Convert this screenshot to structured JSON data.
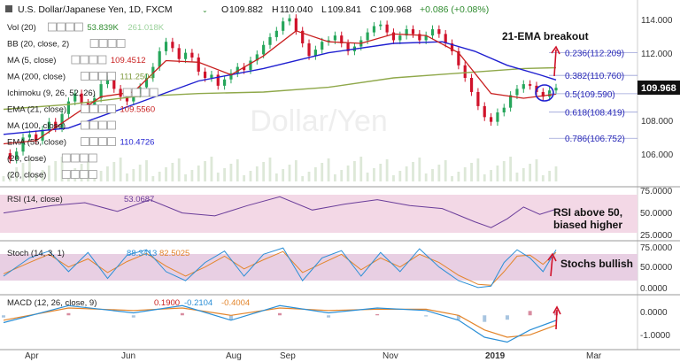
{
  "header": {
    "title": "U.S. Dollar/Japanese Yen, 1D, FXCM",
    "ohlc": {
      "o_label": "O",
      "o": "109.882",
      "h_label": "H",
      "h": "110.040",
      "l_label": "L",
      "l": "109.841",
      "c_label": "C",
      "c": "109.968",
      "change": "+0.086 (+0.08%)"
    }
  },
  "indicators": [
    {
      "label": "Vol (20)",
      "value": "53.839K",
      "value2": "261.018K",
      "color": "#2e8b2e",
      "color2": "#9ad19a"
    },
    {
      "label": "BB (20, close, 2)",
      "value": "",
      "value2": "",
      "color": "#333333",
      "color2": ""
    },
    {
      "label": "MA (5, close)",
      "value": "109.4512",
      "value2": "",
      "color": "#c81e1e",
      "color2": ""
    },
    {
      "label": "MA (200, close)",
      "value": "111.2504",
      "value2": "",
      "color": "#7e9a3e",
      "color2": ""
    },
    {
      "label": "Ichimoku (9, 26, 52, 26)",
      "value": "",
      "value2": "",
      "color": "#333333",
      "color2": ""
    },
    {
      "label": "EMA (21, close)",
      "value": "109.5560",
      "value2": "",
      "color": "#c81e1e",
      "color2": ""
    },
    {
      "label": "MA (100, close)",
      "value": "",
      "value2": "",
      "color": "#333333",
      "color2": ""
    },
    {
      "label": "EMA (55, close)",
      "value": "110.4726",
      "value2": "",
      "color": "#1f1fd0",
      "color2": ""
    },
    {
      "label": "(20, close)",
      "value": "",
      "value2": "",
      "color": "#333333",
      "color2": ""
    },
    {
      "label": "(20, close)",
      "value": "",
      "value2": "",
      "color": "#333333",
      "color2": ""
    }
  ],
  "icons": {
    "dropdown": "chevron-down",
    "eye": "eye",
    "settings": "gear",
    "close": "close",
    "more": "more"
  },
  "price_axis": {
    "ticks": [
      "114.000",
      "112.000",
      "110.000",
      "108.000",
      "106.000"
    ],
    "last_price": "109.968",
    "last_price_color": "#000000"
  },
  "fib_levels": [
    {
      "label": "0.236(112.209)"
    },
    {
      "label": "0.382(110.760)"
    },
    {
      "label": "0.5(109.590)"
    },
    {
      "label": "0.618(108.419)"
    },
    {
      "label": "0.786(106.752)"
    }
  ],
  "annotations": {
    "ema_breakout": "21-EMA breakout",
    "rsi_line1": "RSI above 50,",
    "rsi_line2": "biased higher",
    "stochs": "Stochs bullish"
  },
  "rsi": {
    "label": "RSI (14, close)",
    "value": "53.0687",
    "ticks": [
      "75.0000",
      "50.0000",
      "25.0000"
    ],
    "color": "#6a3d9a"
  },
  "stoch": {
    "label": "Stoch (14, 3, 1)",
    "k": "88.3413",
    "d": "82.5025",
    "ticks": [
      "75.0000",
      "50.0000",
      "0.0000"
    ],
    "k_color": "#2b8fd6",
    "d_color": "#e3852b"
  },
  "macd": {
    "label": "MACD (12, 26, close, 9)",
    "hist": "0.1900",
    "macd": "-0.2104",
    "signal": "-0.4004",
    "ticks": [
      "0.0000",
      "-1.0000"
    ],
    "hist_color": "#c81e1e",
    "macd_color": "#2b8fd6",
    "signal_color": "#e3852b"
  },
  "time_axis": {
    "labels": [
      "Apr",
      "Jun",
      "Aug",
      "Sep",
      "Nov",
      "2019",
      "Mar"
    ]
  },
  "watermark": "Dollar/Yen",
  "chart_data": {
    "type": "line",
    "title": "U.S. Dollar/Japanese Yen, 1D, FXCM",
    "x_labels": [
      "Apr",
      "Jun",
      "Aug",
      "Sep",
      "Nov",
      "2019",
      "Mar"
    ],
    "price": {
      "ylim": [
        104,
        115
      ],
      "close_series": [
        [
          0,
          105.8
        ],
        [
          2,
          105.4
        ],
        [
          4,
          105.9
        ],
        [
          6,
          106.8
        ],
        [
          8,
          107.0
        ],
        [
          10,
          106.6
        ],
        [
          12,
          107.3
        ],
        [
          14,
          107.8
        ],
        [
          16,
          107.4
        ],
        [
          18,
          108.3
        ],
        [
          20,
          109.1
        ],
        [
          22,
          109.6
        ],
        [
          24,
          109.0
        ],
        [
          26,
          108.6
        ],
        [
          28,
          109.3
        ],
        [
          30,
          110.2
        ],
        [
          32,
          110.5
        ],
        [
          34,
          109.9
        ],
        [
          36,
          109.4
        ],
        [
          38,
          109.1
        ],
        [
          40,
          109.6
        ],
        [
          42,
          110.0
        ],
        [
          44,
          110.6
        ],
        [
          46,
          111.3
        ],
        [
          48,
          112.3
        ],
        [
          50,
          112.9
        ],
        [
          52,
          112.5
        ],
        [
          54,
          111.8
        ],
        [
          56,
          112.2
        ],
        [
          58,
          111.9
        ],
        [
          60,
          111.0
        ],
        [
          62,
          110.6
        ],
        [
          64,
          110.8
        ],
        [
          66,
          110.1
        ],
        [
          68,
          110.5
        ],
        [
          70,
          110.9
        ],
        [
          72,
          111.3
        ],
        [
          74,
          111.1
        ],
        [
          76,
          111.7
        ],
        [
          78,
          112.1
        ],
        [
          80,
          112.7
        ],
        [
          82,
          113.2
        ],
        [
          84,
          113.6
        ],
        [
          86,
          114.2
        ],
        [
          88,
          114.4
        ],
        [
          90,
          113.6
        ],
        [
          92,
          112.8
        ],
        [
          94,
          112.0
        ],
        [
          96,
          112.4
        ],
        [
          98,
          112.9
        ],
        [
          100,
          113.0
        ],
        [
          102,
          113.3
        ],
        [
          104,
          112.8
        ],
        [
          106,
          112.3
        ],
        [
          108,
          112.6
        ],
        [
          110,
          113.0
        ],
        [
          112,
          113.5
        ],
        [
          114,
          113.9
        ],
        [
          116,
          114.0
        ],
        [
          118,
          113.5
        ],
        [
          120,
          113.0
        ],
        [
          122,
          113.3
        ],
        [
          124,
          113.7
        ],
        [
          126,
          113.4
        ],
        [
          128,
          113.0
        ],
        [
          130,
          113.3
        ],
        [
          132,
          113.7
        ],
        [
          134,
          113.4
        ],
        [
          136,
          112.8
        ],
        [
          138,
          112.3
        ],
        [
          140,
          111.4
        ],
        [
          142,
          110.6
        ],
        [
          144,
          109.7
        ],
        [
          146,
          108.8
        ],
        [
          148,
          108.1
        ],
        [
          150,
          107.8
        ],
        [
          152,
          108.4
        ],
        [
          154,
          108.7
        ],
        [
          156,
          109.5
        ],
        [
          158,
          109.9
        ],
        [
          160,
          110.2
        ],
        [
          162,
          110.1
        ],
        [
          164,
          109.7
        ],
        [
          166,
          109.4
        ],
        [
          168,
          109.8
        ],
        [
          170,
          109.97
        ]
      ],
      "ema21": [
        [
          0,
          106.4
        ],
        [
          10,
          106.6
        ],
        [
          20,
          108.0
        ],
        [
          30,
          109.4
        ],
        [
          40,
          109.7
        ],
        [
          50,
          111.7
        ],
        [
          60,
          111.6
        ],
        [
          70,
          110.8
        ],
        [
          80,
          112.0
        ],
        [
          90,
          113.6
        ],
        [
          100,
          112.9
        ],
        [
          110,
          112.8
        ],
        [
          120,
          113.4
        ],
        [
          130,
          113.3
        ],
        [
          140,
          112.2
        ],
        [
          150,
          109.6
        ],
        [
          160,
          109.3
        ],
        [
          170,
          109.56
        ]
      ],
      "ema55": [
        [
          0,
          107.0
        ],
        [
          20,
          107.4
        ],
        [
          40,
          108.9
        ],
        [
          60,
          110.4
        ],
        [
          80,
          111.2
        ],
        [
          100,
          112.2
        ],
        [
          120,
          112.8
        ],
        [
          135,
          112.9
        ],
        [
          145,
          112.3
        ],
        [
          155,
          111.4
        ],
        [
          165,
          110.8
        ],
        [
          170,
          110.47
        ]
      ],
      "ma200": [
        [
          0,
          108.6
        ],
        [
          20,
          108.9
        ],
        [
          40,
          109.4
        ],
        [
          60,
          109.6
        ],
        [
          80,
          109.7
        ],
        [
          100,
          110.0
        ],
        [
          120,
          110.6
        ],
        [
          140,
          110.9
        ],
        [
          160,
          111.2
        ],
        [
          170,
          111.25
        ]
      ]
    },
    "rsi": {
      "ylim": [
        15,
        80
      ],
      "values": [
        [
          0,
          48
        ],
        [
          15,
          58
        ],
        [
          25,
          62
        ],
        [
          35,
          50
        ],
        [
          45,
          66
        ],
        [
          55,
          48
        ],
        [
          65,
          44
        ],
        [
          75,
          58
        ],
        [
          85,
          70
        ],
        [
          95,
          52
        ],
        [
          105,
          60
        ],
        [
          115,
          66
        ],
        [
          125,
          58
        ],
        [
          135,
          54
        ],
        [
          145,
          36
        ],
        [
          150,
          28
        ],
        [
          155,
          40
        ],
        [
          160,
          56
        ],
        [
          165,
          46
        ],
        [
          170,
          53
        ]
      ]
    },
    "stoch": {
      "ylim": [
        -5,
        100
      ],
      "k": [
        [
          0,
          30
        ],
        [
          8,
          70
        ],
        [
          14,
          85
        ],
        [
          20,
          40
        ],
        [
          26,
          82
        ],
        [
          32,
          25
        ],
        [
          38,
          76
        ],
        [
          44,
          88
        ],
        [
          50,
          40
        ],
        [
          56,
          20
        ],
        [
          62,
          60
        ],
        [
          68,
          85
        ],
        [
          74,
          30
        ],
        [
          80,
          78
        ],
        [
          86,
          92
        ],
        [
          92,
          20
        ],
        [
          98,
          70
        ],
        [
          104,
          86
        ],
        [
          110,
          30
        ],
        [
          116,
          82
        ],
        [
          122,
          40
        ],
        [
          128,
          90
        ],
        [
          134,
          50
        ],
        [
          140,
          20
        ],
        [
          146,
          5
        ],
        [
          150,
          8
        ],
        [
          154,
          60
        ],
        [
          158,
          88
        ],
        [
          162,
          70
        ],
        [
          166,
          40
        ],
        [
          170,
          88
        ]
      ],
      "d": [
        [
          0,
          35
        ],
        [
          8,
          60
        ],
        [
          14,
          78
        ],
        [
          20,
          50
        ],
        [
          26,
          68
        ],
        [
          32,
          38
        ],
        [
          38,
          62
        ],
        [
          44,
          80
        ],
        [
          50,
          52
        ],
        [
          56,
          30
        ],
        [
          62,
          50
        ],
        [
          68,
          74
        ],
        [
          74,
          46
        ],
        [
          80,
          66
        ],
        [
          86,
          84
        ],
        [
          92,
          38
        ],
        [
          98,
          58
        ],
        [
          104,
          78
        ],
        [
          110,
          44
        ],
        [
          116,
          70
        ],
        [
          122,
          50
        ],
        [
          128,
          78
        ],
        [
          134,
          60
        ],
        [
          140,
          32
        ],
        [
          146,
          12
        ],
        [
          150,
          10
        ],
        [
          154,
          40
        ],
        [
          158,
          74
        ],
        [
          162,
          76
        ],
        [
          166,
          56
        ],
        [
          170,
          82
        ]
      ]
    },
    "macd": {
      "ylim": [
        -1.3,
        0.7
      ],
      "macd": [
        [
          0,
          -0.3
        ],
        [
          20,
          0.4
        ],
        [
          40,
          0.1
        ],
        [
          55,
          0.4
        ],
        [
          70,
          -0.2
        ],
        [
          85,
          0.4
        ],
        [
          100,
          0.1
        ],
        [
          115,
          0.3
        ],
        [
          130,
          0.2
        ],
        [
          140,
          -0.2
        ],
        [
          148,
          -0.9
        ],
        [
          155,
          -1.1
        ],
        [
          162,
          -0.6
        ],
        [
          170,
          -0.21
        ]
      ],
      "signal": [
        [
          0,
          -0.2
        ],
        [
          20,
          0.3
        ],
        [
          40,
          0.2
        ],
        [
          55,
          0.3
        ],
        [
          70,
          0.0
        ],
        [
          85,
          0.3
        ],
        [
          100,
          0.2
        ],
        [
          115,
          0.25
        ],
        [
          130,
          0.25
        ],
        [
          140,
          0.0
        ],
        [
          148,
          -0.6
        ],
        [
          155,
          -0.9
        ],
        [
          162,
          -0.8
        ],
        [
          170,
          -0.4
        ]
      ]
    }
  }
}
